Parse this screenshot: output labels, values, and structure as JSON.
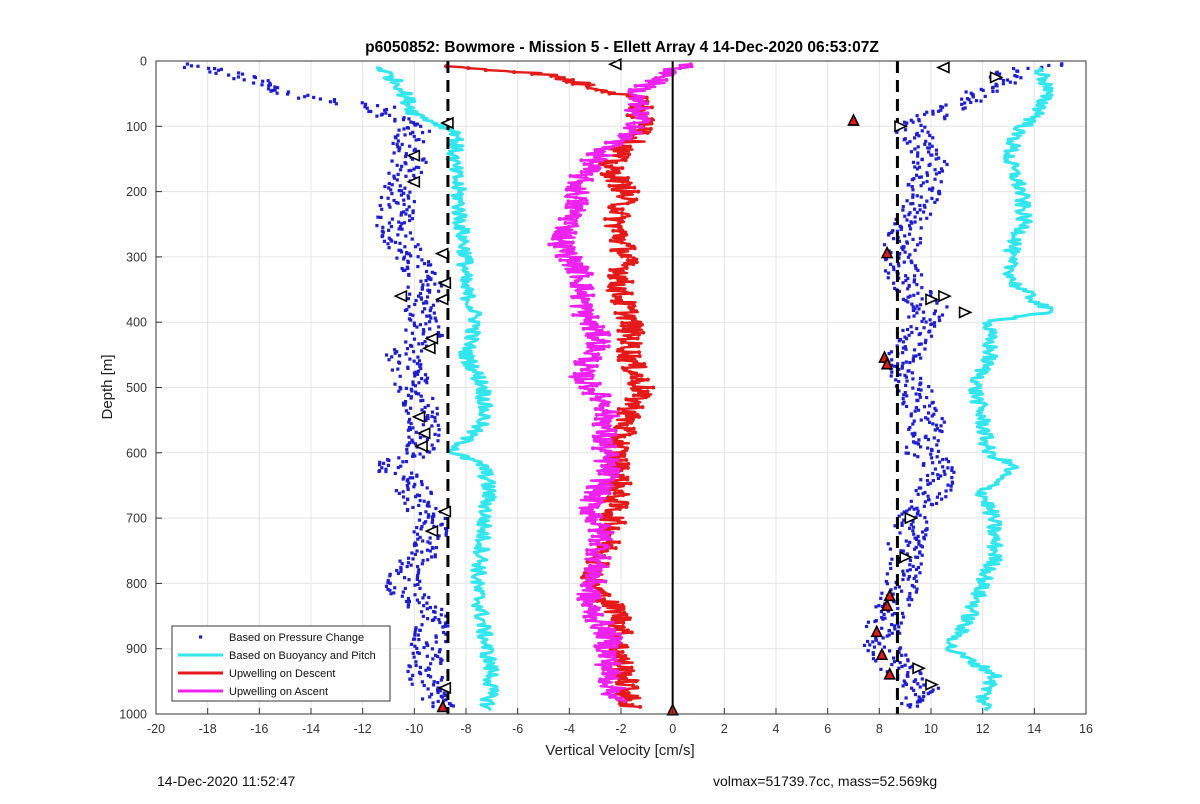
{
  "chart_data": {
    "type": "scatter",
    "title": "p6050852: Bowmore - Mission 5 - Ellett Array 4 14-Dec-2020 06:53:07Z",
    "xlabel": "Vertical Velocity [cm/s]",
    "ylabel": "Depth [m]",
    "xlim": [
      -20,
      16
    ],
    "ylim": [
      0,
      1000
    ],
    "y_reversed": true,
    "grid": true,
    "legend_position": "bottom-left",
    "x_ticks": [
      "-20",
      "-18",
      "-16",
      "-14",
      "-12",
      "-10",
      "-8",
      "-6",
      "-4",
      "-2",
      "0",
      "2",
      "4",
      "6",
      "8",
      "10",
      "12",
      "14",
      "16"
    ],
    "y_ticks": [
      "0",
      "100",
      "200",
      "300",
      "400",
      "500",
      "600",
      "700",
      "800",
      "900",
      "1000"
    ],
    "reference_lines": [
      {
        "x": -8.7,
        "style": "dashed",
        "color": "#000000"
      },
      {
        "x": 8.7,
        "style": "dashed",
        "color": "#000000"
      },
      {
        "x": 0,
        "style": "solid",
        "color": "#000000"
      }
    ],
    "series": [
      {
        "name": "Based on Pressure Change",
        "style": "points",
        "color": "#1f1fd0",
        "profile": [
          {
            "depth": 5,
            "left": -19,
            "right": 14.5
          },
          {
            "depth": 20,
            "left": -17,
            "right": 13
          },
          {
            "depth": 50,
            "left": -15,
            "right": 12
          },
          {
            "depth": 70,
            "left": -11.5,
            "right": 10.8
          },
          {
            "depth": 100,
            "left": -10,
            "right": 9.2
          },
          {
            "depth": 130,
            "left": -10.3,
            "right": 9.6
          },
          {
            "depth": 160,
            "left": -10.2,
            "right": 10
          },
          {
            "depth": 200,
            "left": -10.6,
            "right": 9.7
          },
          {
            "depth": 250,
            "left": -10.8,
            "right": 9.2
          },
          {
            "depth": 300,
            "left": -10.2,
            "right": 8.7
          },
          {
            "depth": 350,
            "left": -9.5,
            "right": 9.2
          },
          {
            "depth": 380,
            "left": -9.8,
            "right": 10
          },
          {
            "depth": 420,
            "left": -9.6,
            "right": 9.5
          },
          {
            "depth": 450,
            "left": -10.5,
            "right": 8.9
          },
          {
            "depth": 500,
            "left": -10,
            "right": 9.3
          },
          {
            "depth": 550,
            "left": -9.5,
            "right": 9.9
          },
          {
            "depth": 600,
            "left": -9.9,
            "right": 9.6
          },
          {
            "depth": 620,
            "left": -10.9,
            "right": 10.3
          },
          {
            "depth": 660,
            "left": -10,
            "right": 10.1
          },
          {
            "depth": 700,
            "left": -9.4,
            "right": 9.3
          },
          {
            "depth": 740,
            "left": -9.3,
            "right": 9
          },
          {
            "depth": 780,
            "left": -10.5,
            "right": 9
          },
          {
            "depth": 810,
            "left": -10.4,
            "right": 8.8
          },
          {
            "depth": 850,
            "left": -9.2,
            "right": 8.3
          },
          {
            "depth": 890,
            "left": -9.4,
            "right": 8
          },
          {
            "depth": 930,
            "left": -9.7,
            "right": 8.7
          },
          {
            "depth": 960,
            "left": -9.5,
            "right": 9.6
          },
          {
            "depth": 990,
            "left": -8.9,
            "right": 9.3
          }
        ]
      },
      {
        "name": "Based on Buoyancy and Pitch",
        "style": "line",
        "color": "#33e6ee",
        "profile": [
          {
            "depth": 10,
            "left": -11.3,
            "right": 14.2
          },
          {
            "depth": 40,
            "left": -10.5,
            "right": 14.5
          },
          {
            "depth": 80,
            "left": -10,
            "right": 14.2
          },
          {
            "depth": 110,
            "left": -8.3,
            "right": 13.3
          },
          {
            "depth": 150,
            "left": -8.5,
            "right": 13
          },
          {
            "depth": 200,
            "left": -8.3,
            "right": 13.5
          },
          {
            "depth": 250,
            "left": -8.2,
            "right": 13.6
          },
          {
            "depth": 300,
            "left": -8,
            "right": 13
          },
          {
            "depth": 340,
            "left": -8.1,
            "right": 13.2
          },
          {
            "depth": 385,
            "left": -7.7,
            "right": 14.6
          },
          {
            "depth": 400,
            "left": -7.6,
            "right": 12.2
          },
          {
            "depth": 450,
            "left": -8,
            "right": 12.3
          },
          {
            "depth": 500,
            "left": -7.3,
            "right": 11.7
          },
          {
            "depth": 550,
            "left": -7.3,
            "right": 12
          },
          {
            "depth": 600,
            "left": -8.5,
            "right": 12.2
          },
          {
            "depth": 620,
            "left": -7.3,
            "right": 13.2
          },
          {
            "depth": 660,
            "left": -7.1,
            "right": 12
          },
          {
            "depth": 700,
            "left": -7.3,
            "right": 12.4
          },
          {
            "depth": 760,
            "left": -7.4,
            "right": 12.5
          },
          {
            "depth": 800,
            "left": -7.6,
            "right": 12
          },
          {
            "depth": 850,
            "left": -7.4,
            "right": 11.5
          },
          {
            "depth": 900,
            "left": -7.2,
            "right": 10.7
          },
          {
            "depth": 940,
            "left": -7,
            "right": 12.5
          },
          {
            "depth": 975,
            "left": -7.1,
            "right": 12
          },
          {
            "depth": 995,
            "left": -7.2,
            "right": 12.2
          }
        ]
      },
      {
        "name": "Upwelling on Descent",
        "style": "line-markers",
        "color": "#e41a1a",
        "profile": [
          {
            "depth": 8,
            "x": -8.5
          },
          {
            "depth": 20,
            "x": -5
          },
          {
            "depth": 40,
            "x": -3
          },
          {
            "depth": 60,
            "x": -1
          },
          {
            "depth": 80,
            "x": -1.5
          },
          {
            "depth": 100,
            "x": -0.8
          },
          {
            "depth": 130,
            "x": -1.8
          },
          {
            "depth": 160,
            "x": -2.5
          },
          {
            "depth": 200,
            "x": -1.8
          },
          {
            "depth": 250,
            "x": -2.2
          },
          {
            "depth": 300,
            "x": -1.8
          },
          {
            "depth": 350,
            "x": -2.1
          },
          {
            "depth": 400,
            "x": -1.6
          },
          {
            "depth": 450,
            "x": -1.7
          },
          {
            "depth": 500,
            "x": -1.2
          },
          {
            "depth": 550,
            "x": -1.8
          },
          {
            "depth": 600,
            "x": -2.2
          },
          {
            "depth": 650,
            "x": -2.1
          },
          {
            "depth": 700,
            "x": -2.3
          },
          {
            "depth": 750,
            "x": -2.6
          },
          {
            "depth": 800,
            "x": -3.2
          },
          {
            "depth": 850,
            "x": -2
          },
          {
            "depth": 900,
            "x": -2.1
          },
          {
            "depth": 950,
            "x": -1.8
          },
          {
            "depth": 990,
            "x": -1.7
          }
        ]
      },
      {
        "name": "Upwelling on Ascent",
        "style": "line-markers",
        "color": "#ee22ee",
        "profile": [
          {
            "depth": 5,
            "x": 0.5
          },
          {
            "depth": 50,
            "x": -1.5
          },
          {
            "depth": 100,
            "x": -1.3
          },
          {
            "depth": 140,
            "x": -2.8
          },
          {
            "depth": 180,
            "x": -3.6
          },
          {
            "depth": 230,
            "x": -3.8
          },
          {
            "depth": 280,
            "x": -4.3
          },
          {
            "depth": 330,
            "x": -3.5
          },
          {
            "depth": 380,
            "x": -3.5
          },
          {
            "depth": 430,
            "x": -2.8
          },
          {
            "depth": 480,
            "x": -3.6
          },
          {
            "depth": 530,
            "x": -2.5
          },
          {
            "depth": 580,
            "x": -2.7
          },
          {
            "depth": 630,
            "x": -2.5
          },
          {
            "depth": 680,
            "x": -3.2
          },
          {
            "depth": 730,
            "x": -2.7
          },
          {
            "depth": 780,
            "x": -3
          },
          {
            "depth": 830,
            "x": -3.3
          },
          {
            "depth": 880,
            "x": -2.5
          },
          {
            "depth": 930,
            "x": -2.5
          },
          {
            "depth": 980,
            "x": -2.2
          }
        ]
      }
    ],
    "markers": [
      {
        "type": "triangle-left",
        "color": "#000000",
        "points": [
          [
            -2.2,
            5
          ],
          [
            10.5,
            10
          ],
          [
            -8.7,
            95
          ],
          [
            -10,
            145
          ],
          [
            -10,
            185
          ],
          [
            -8.9,
            295
          ],
          [
            -8.8,
            340
          ],
          [
            -8.9,
            365
          ],
          [
            -9.4,
            440
          ],
          [
            -9.3,
            425
          ],
          [
            -9.8,
            545
          ],
          [
            -9.6,
            570
          ],
          [
            -9.7,
            590
          ],
          [
            -10.5,
            360
          ],
          [
            -8.8,
            690
          ],
          [
            -9.3,
            720
          ],
          [
            -8.8,
            960
          ]
        ]
      },
      {
        "type": "triangle-right",
        "color": "#000000",
        "points": [
          [
            12.5,
            25
          ],
          [
            8.8,
            100
          ],
          [
            10,
            365
          ],
          [
            10.5,
            360
          ],
          [
            11.3,
            385
          ],
          [
            9.2,
            700
          ],
          [
            9,
            760
          ],
          [
            9.5,
            930
          ],
          [
            10,
            955
          ]
        ]
      },
      {
        "type": "triangle-filled",
        "color": "#e41a1a",
        "points": [
          [
            7,
            92
          ],
          [
            8.3,
            295
          ],
          [
            8.2,
            455
          ],
          [
            8.3,
            465
          ],
          [
            8.4,
            820
          ],
          [
            8.3,
            835
          ],
          [
            7.9,
            875
          ],
          [
            8.1,
            910
          ],
          [
            8.4,
            940
          ],
          [
            0,
            995
          ],
          [
            -8.9,
            990
          ]
        ]
      }
    ]
  },
  "legend": {
    "items": [
      {
        "label": "Based on Pressure Change",
        "color": "#1f1fd0",
        "style": "point"
      },
      {
        "label": "Based on Buoyancy and Pitch",
        "color": "#33e6ee",
        "style": "line"
      },
      {
        "label": "Upwelling on Descent",
        "color": "#e41a1a",
        "style": "line"
      },
      {
        "label": "Upwelling on Ascent",
        "color": "#ee22ee",
        "style": "line"
      }
    ]
  },
  "footer": {
    "timestamp": "14-Dec-2020 11:52:47",
    "info": "volmax=51739.7cc, mass=52.569kg"
  }
}
